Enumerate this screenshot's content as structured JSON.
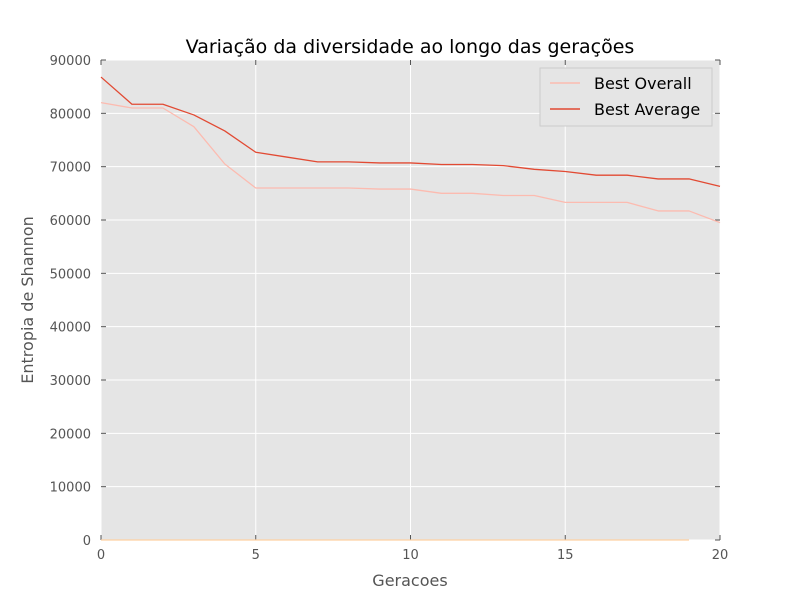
{
  "chart_data": {
    "type": "line",
    "title": "Variação da diversidade ao longo das gerações",
    "xlabel": "Geracoes",
    "ylabel": "Entropia de Shannon",
    "xlim": [
      0,
      20
    ],
    "ylim": [
      0,
      90000
    ],
    "xticks": [
      0,
      5,
      10,
      15,
      20
    ],
    "yticks": [
      0,
      10000,
      20000,
      30000,
      40000,
      50000,
      60000,
      70000,
      80000,
      90000
    ],
    "grid": true,
    "legend_position": "top-right",
    "x": [
      0,
      1,
      2,
      3,
      4,
      5,
      6,
      7,
      8,
      9,
      10,
      11,
      12,
      13,
      14,
      15,
      16,
      17,
      18,
      19,
      20
    ],
    "series": [
      {
        "name": "Best Overall",
        "color": "#fcbbb0",
        "values": [
          82000,
          81000,
          81000,
          77500,
          70500,
          66000,
          66000,
          66000,
          66000,
          65800,
          65800,
          65000,
          65000,
          64600,
          64600,
          63300,
          63300,
          63300,
          61700,
          61700,
          59500
        ]
      },
      {
        "name": "Best Average",
        "color": "#e24a33",
        "values": [
          86800,
          81700,
          81700,
          79700,
          76700,
          72700,
          71800,
          70900,
          70900,
          70700,
          70700,
          70400,
          70400,
          70200,
          69500,
          69100,
          68400,
          68400,
          67700,
          67700,
          66300
        ]
      },
      {
        "name": "",
        "color": "#fdd0a2",
        "values": [
          0,
          0,
          0,
          0,
          0,
          0,
          0,
          0,
          0,
          0,
          0,
          0,
          0,
          0,
          0,
          0,
          0,
          0,
          0,
          0,
          null
        ]
      }
    ]
  }
}
